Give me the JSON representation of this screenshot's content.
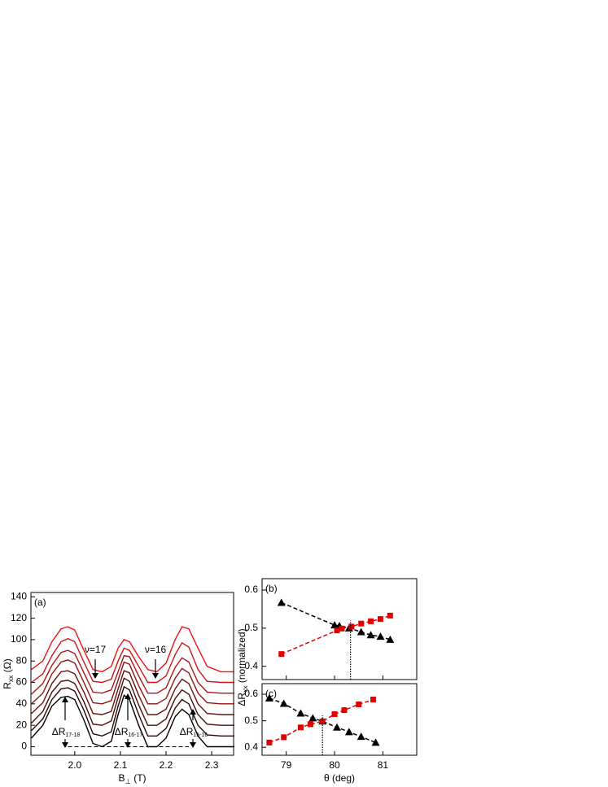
{
  "chart_data": [
    {
      "type": "line",
      "label": "(a)",
      "xlabel": {
        "main": "B",
        "sub": "⊥",
        "unit": "(T)"
      },
      "ylabel": {
        "main": "R",
        "sub": "xx",
        "unit": "(Ω)"
      },
      "xlim": [
        1.904,
        2.348
      ],
      "ylim": [
        -8,
        144
      ],
      "xticks": [
        {
          "value": 2,
          "label": "2.0"
        },
        2.1,
        2.2,
        2.3
      ],
      "yticks": [
        0,
        20,
        40,
        60,
        80,
        100,
        120,
        140
      ],
      "x": [
        1.905,
        1.93,
        1.95,
        1.97,
        1.985,
        2.0,
        2.02,
        2.04,
        2.06,
        2.08,
        2.095,
        2.108,
        2.12,
        2.14,
        2.16,
        2.18,
        2.2,
        2.22,
        2.235,
        2.25,
        2.27,
        2.29,
        2.32,
        2.35
      ],
      "series": [
        {
          "color": "#000000",
          "values": [
            8,
            20,
            38,
            46,
            47,
            44,
            25,
            3,
            0,
            5,
            30,
            48,
            44,
            20,
            0,
            0,
            8,
            28,
            35,
            30,
            10,
            0,
            0,
            0
          ]
        },
        {
          "color": "#2a0606",
          "values": [
            15,
            26,
            44,
            54,
            55,
            52,
            34,
            12,
            10,
            14,
            38,
            56,
            53,
            30,
            10,
            10,
            17,
            36,
            44,
            40,
            20,
            11,
            10,
            10
          ]
        },
        {
          "color": "#4a0c0c",
          "values": [
            22,
            33,
            51,
            61,
            62,
            59,
            42,
            21,
            20,
            24,
            46,
            64,
            61,
            39,
            20,
            20,
            26,
            45,
            53,
            49,
            30,
            21,
            20,
            20
          ]
        },
        {
          "color": "#6a1010",
          "values": [
            31,
            41,
            59,
            70,
            71,
            68,
            51,
            31,
            30,
            33,
            54,
            71,
            69,
            48,
            30,
            30,
            35,
            54,
            63,
            59,
            40,
            31,
            30,
            30
          ]
        },
        {
          "color": "#8c1414",
          "values": [
            40,
            50,
            68,
            79,
            81,
            78,
            60,
            41,
            40,
            43,
            62,
            79,
            77,
            57,
            40,
            40,
            45,
            64,
            73,
            69,
            50,
            41,
            40,
            40
          ]
        },
        {
          "color": "#ad1616",
          "values": [
            49,
            59,
            76,
            88,
            90,
            87,
            69,
            51,
            50,
            53,
            70,
            85,
            84,
            66,
            50,
            50,
            55,
            74,
            83,
            79,
            60,
            51,
            50,
            50
          ]
        },
        {
          "color": "#cc1515",
          "values": [
            60,
            68,
            85,
            98,
            101,
            98,
            79,
            61,
            60,
            63,
            80,
            92,
            90,
            75,
            60,
            60,
            66,
            86,
            97,
            93,
            72,
            61,
            60,
            60
          ]
        },
        {
          "color": "#ee1111",
          "values": [
            72,
            80,
            98,
            110,
            112,
            109,
            90,
            72,
            70,
            75,
            92,
            100,
            98,
            84,
            72,
            70,
            78,
            100,
            112,
            110,
            92,
            75,
            70,
            70
          ]
        }
      ],
      "hline": {
        "y": 0,
        "x": [
          1.985,
          2.25
        ]
      },
      "annotations": [
        {
          "text": "ν=17"
        },
        {
          "text": "ν=16"
        },
        {
          "text": "ΔR",
          "sub": "17-18"
        },
        {
          "text": "ΔR",
          "sub": "16-17"
        },
        {
          "text": "ΔR",
          "sub": "15-16"
        }
      ]
    },
    {
      "type": "scatter",
      "label": "(b)",
      "ylabel": {
        "main": "ΔR",
        "sub": "xx",
        "unit": "(normalized)"
      },
      "xlim": [
        78.5,
        81.7
      ],
      "ylim": [
        0.365,
        0.63
      ],
      "xticks": [
        79,
        80,
        81
      ],
      "yticks": [
        0.4,
        0.5,
        0.6
      ],
      "series": [
        {
          "marker": "triangle",
          "color": "#000000",
          "x": [
            78.9,
            80.0,
            80.1,
            80.3,
            80.55,
            80.75,
            80.95,
            81.15
          ],
          "values": [
            0.567,
            0.508,
            0.506,
            0.5,
            0.49,
            0.482,
            0.478,
            0.47
          ]
        },
        {
          "marker": "square",
          "color": "#e00000",
          "x": [
            78.9,
            80.05,
            80.15,
            80.35,
            80.55,
            80.75,
            80.95,
            81.15
          ],
          "values": [
            0.432,
            0.494,
            0.499,
            0.504,
            0.512,
            0.518,
            0.524,
            0.533
          ]
        }
      ],
      "vline": {
        "x": 80.33,
        "y": 0.52
      }
    },
    {
      "type": "scatter",
      "label": "(c)",
      "xlabel": {
        "main": "θ",
        "unit": "(deg)"
      },
      "xlim": [
        78.5,
        81.7
      ],
      "ylim": [
        0.37,
        0.64
      ],
      "xticks": [
        79,
        80,
        81
      ],
      "yticks": [
        0.4,
        0.5,
        0.6
      ],
      "series": [
        {
          "marker": "triangle",
          "color": "#000000",
          "x": [
            78.65,
            78.95,
            79.3,
            79.55,
            79.75,
            80.05,
            80.3,
            80.55,
            80.85
          ],
          "values": [
            0.585,
            0.565,
            0.528,
            0.51,
            0.498,
            0.475,
            0.458,
            0.44,
            0.418
          ]
        },
        {
          "marker": "square",
          "color": "#e00000",
          "x": [
            78.65,
            78.95,
            79.3,
            79.5,
            79.75,
            80.0,
            80.2,
            80.5,
            80.8
          ],
          "values": [
            0.418,
            0.438,
            0.475,
            0.487,
            0.498,
            0.525,
            0.54,
            0.562,
            0.58
          ]
        }
      ],
      "vline": {
        "x": 79.75,
        "y": 0.52
      }
    }
  ]
}
